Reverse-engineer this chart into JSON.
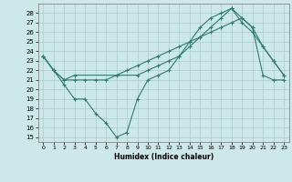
{
  "title": "",
  "xlabel": "Humidex (Indice chaleur)",
  "bg_color": "#cce8e8",
  "grid_color": "#aacccc",
  "line_color": "#2e7d6e",
  "xlim": [
    -0.5,
    23.5
  ],
  "ylim": [
    14.5,
    29.0
  ],
  "xticks": [
    0,
    1,
    2,
    3,
    4,
    5,
    6,
    7,
    8,
    9,
    10,
    11,
    12,
    13,
    14,
    15,
    16,
    17,
    18,
    19,
    20,
    21,
    22,
    23
  ],
  "yticks": [
    15,
    16,
    17,
    18,
    19,
    20,
    21,
    22,
    23,
    24,
    25,
    26,
    27,
    28
  ],
  "series1_x": [
    0,
    1,
    2,
    3,
    4,
    5,
    6,
    7,
    8,
    9,
    10,
    11,
    12,
    13,
    14,
    15,
    16,
    17,
    18,
    19,
    20,
    21,
    22,
    23
  ],
  "series1_y": [
    23.5,
    22.0,
    20.5,
    19.0,
    19.0,
    17.5,
    16.5,
    15.0,
    15.5,
    19.0,
    21.0,
    21.5,
    22.0,
    23.5,
    24.5,
    25.5,
    26.5,
    27.5,
    28.5,
    27.5,
    26.5,
    24.5,
    23.0,
    21.5
  ],
  "series2_x": [
    0,
    1,
    2,
    3,
    9,
    10,
    11,
    12,
    13,
    14,
    15,
    16,
    17,
    18,
    19,
    20,
    21,
    22,
    23
  ],
  "series2_y": [
    23.5,
    22.0,
    21.0,
    21.5,
    21.5,
    22.0,
    22.5,
    23.0,
    23.5,
    25.0,
    26.5,
    27.5,
    28.0,
    28.5,
    27.0,
    26.0,
    24.5,
    23.0,
    21.5
  ],
  "series3_x": [
    0,
    1,
    2,
    3,
    4,
    5,
    6,
    7,
    8,
    9,
    10,
    11,
    12,
    13,
    14,
    15,
    16,
    17,
    18,
    19,
    20,
    21,
    22,
    23
  ],
  "series3_y": [
    23.5,
    22.0,
    21.0,
    21.0,
    21.0,
    21.0,
    21.0,
    21.5,
    22.0,
    22.5,
    23.0,
    23.5,
    24.0,
    24.5,
    25.0,
    25.5,
    26.0,
    26.5,
    27.0,
    27.5,
    26.5,
    21.5,
    21.0,
    21.0
  ]
}
